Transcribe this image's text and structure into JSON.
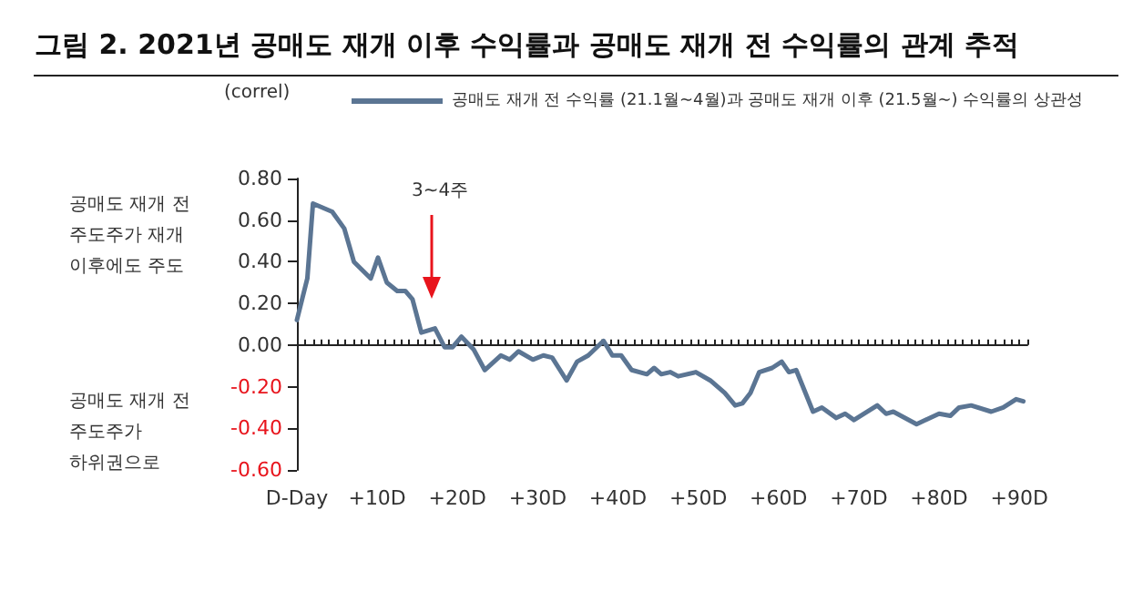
{
  "chart_data": {
    "type": "line",
    "title": "그림 2. 2021년 공매도 재개 이후 수익률과 공매도 재개 전 수익률의 관계 추적",
    "ylabel": "(correl)",
    "series": [
      {
        "name": "공매도 재개 전 수익률 (21.1월~4월)과 공매도 재개 이후 (21.5월~) 수익률의 상관성",
        "color": "#5b7593",
        "x": [
          0,
          1.3,
          2,
          4.4,
          5.9,
          7.1,
          9.2,
          10.1,
          11.2,
          12.5,
          13.5,
          14.4,
          15.5,
          17.2,
          18.4,
          19.4,
          20.5,
          22,
          23.4,
          25.4,
          26.5,
          27.6,
          29.4,
          30.7,
          31.8,
          33.6,
          34.9,
          36.3,
          38.2,
          39.3,
          40.4,
          41.7,
          43.6,
          44.5,
          45.4,
          46.5,
          47.5,
          49.7,
          51.5,
          53.3,
          54.6,
          55.5,
          56.5,
          57.6,
          59.2,
          60.4,
          61.3,
          62.2,
          64.3,
          65.4,
          67.2,
          68.3,
          69.4,
          72.3,
          73.4,
          74.3,
          77.2,
          80,
          81.4,
          82.5,
          84,
          86.5,
          88,
          89.6,
          90.5
        ],
        "values": [
          0.12,
          0.32,
          0.68,
          0.64,
          0.56,
          0.4,
          0.32,
          0.42,
          0.3,
          0.26,
          0.26,
          0.22,
          0.06,
          0.08,
          -0.01,
          -0.01,
          0.04,
          -0.02,
          -0.12,
          -0.05,
          -0.07,
          -0.03,
          -0.07,
          -0.05,
          -0.06,
          -0.17,
          -0.08,
          -0.05,
          0.02,
          -0.05,
          -0.05,
          -0.12,
          -0.14,
          -0.11,
          -0.14,
          -0.13,
          -0.15,
          -0.13,
          -0.17,
          -0.23,
          -0.29,
          -0.28,
          -0.23,
          -0.13,
          -0.11,
          -0.08,
          -0.13,
          -0.12,
          -0.32,
          -0.3,
          -0.35,
          -0.33,
          -0.36,
          -0.29,
          -0.33,
          -0.32,
          -0.38,
          -0.33,
          -0.34,
          -0.3,
          -0.29,
          -0.32,
          -0.3,
          -0.26,
          -0.27
        ]
      }
    ],
    "xlim": [
      0,
      91
    ],
    "xticks": [
      {
        "value": 0,
        "label": "D-Day"
      },
      {
        "value": 10,
        "label": "+10D"
      },
      {
        "value": 20,
        "label": "+20D"
      },
      {
        "value": 30,
        "label": "+30D"
      },
      {
        "value": 40,
        "label": "+40D"
      },
      {
        "value": 50,
        "label": "+50D"
      },
      {
        "value": 60,
        "label": "+60D"
      },
      {
        "value": 70,
        "label": "+70D"
      },
      {
        "value": 80,
        "label": "+80D"
      },
      {
        "value": 90,
        "label": "+90D"
      }
    ],
    "ylim": [
      -0.6,
      0.8
    ],
    "yticks": [
      {
        "value": -0.6,
        "label": "-0.60"
      },
      {
        "value": -0.4,
        "label": "-0.40"
      },
      {
        "value": -0.2,
        "label": "-0.20"
      },
      {
        "value": 0,
        "label": "0.00"
      },
      {
        "value": 0.2,
        "label": "0.20"
      },
      {
        "value": 0.4,
        "label": "0.40"
      },
      {
        "value": 0.6,
        "label": "0.60"
      },
      {
        "value": 0.8,
        "label": "0.80"
      }
    ],
    "annotations": [
      "3~4주",
      "공매도 재개 전\n주도주가 재개\n이후에도 주도",
      "공매도 재개 전\n주도주가\n하위권으로"
    ],
    "legend": "top",
    "marker": "none"
  }
}
